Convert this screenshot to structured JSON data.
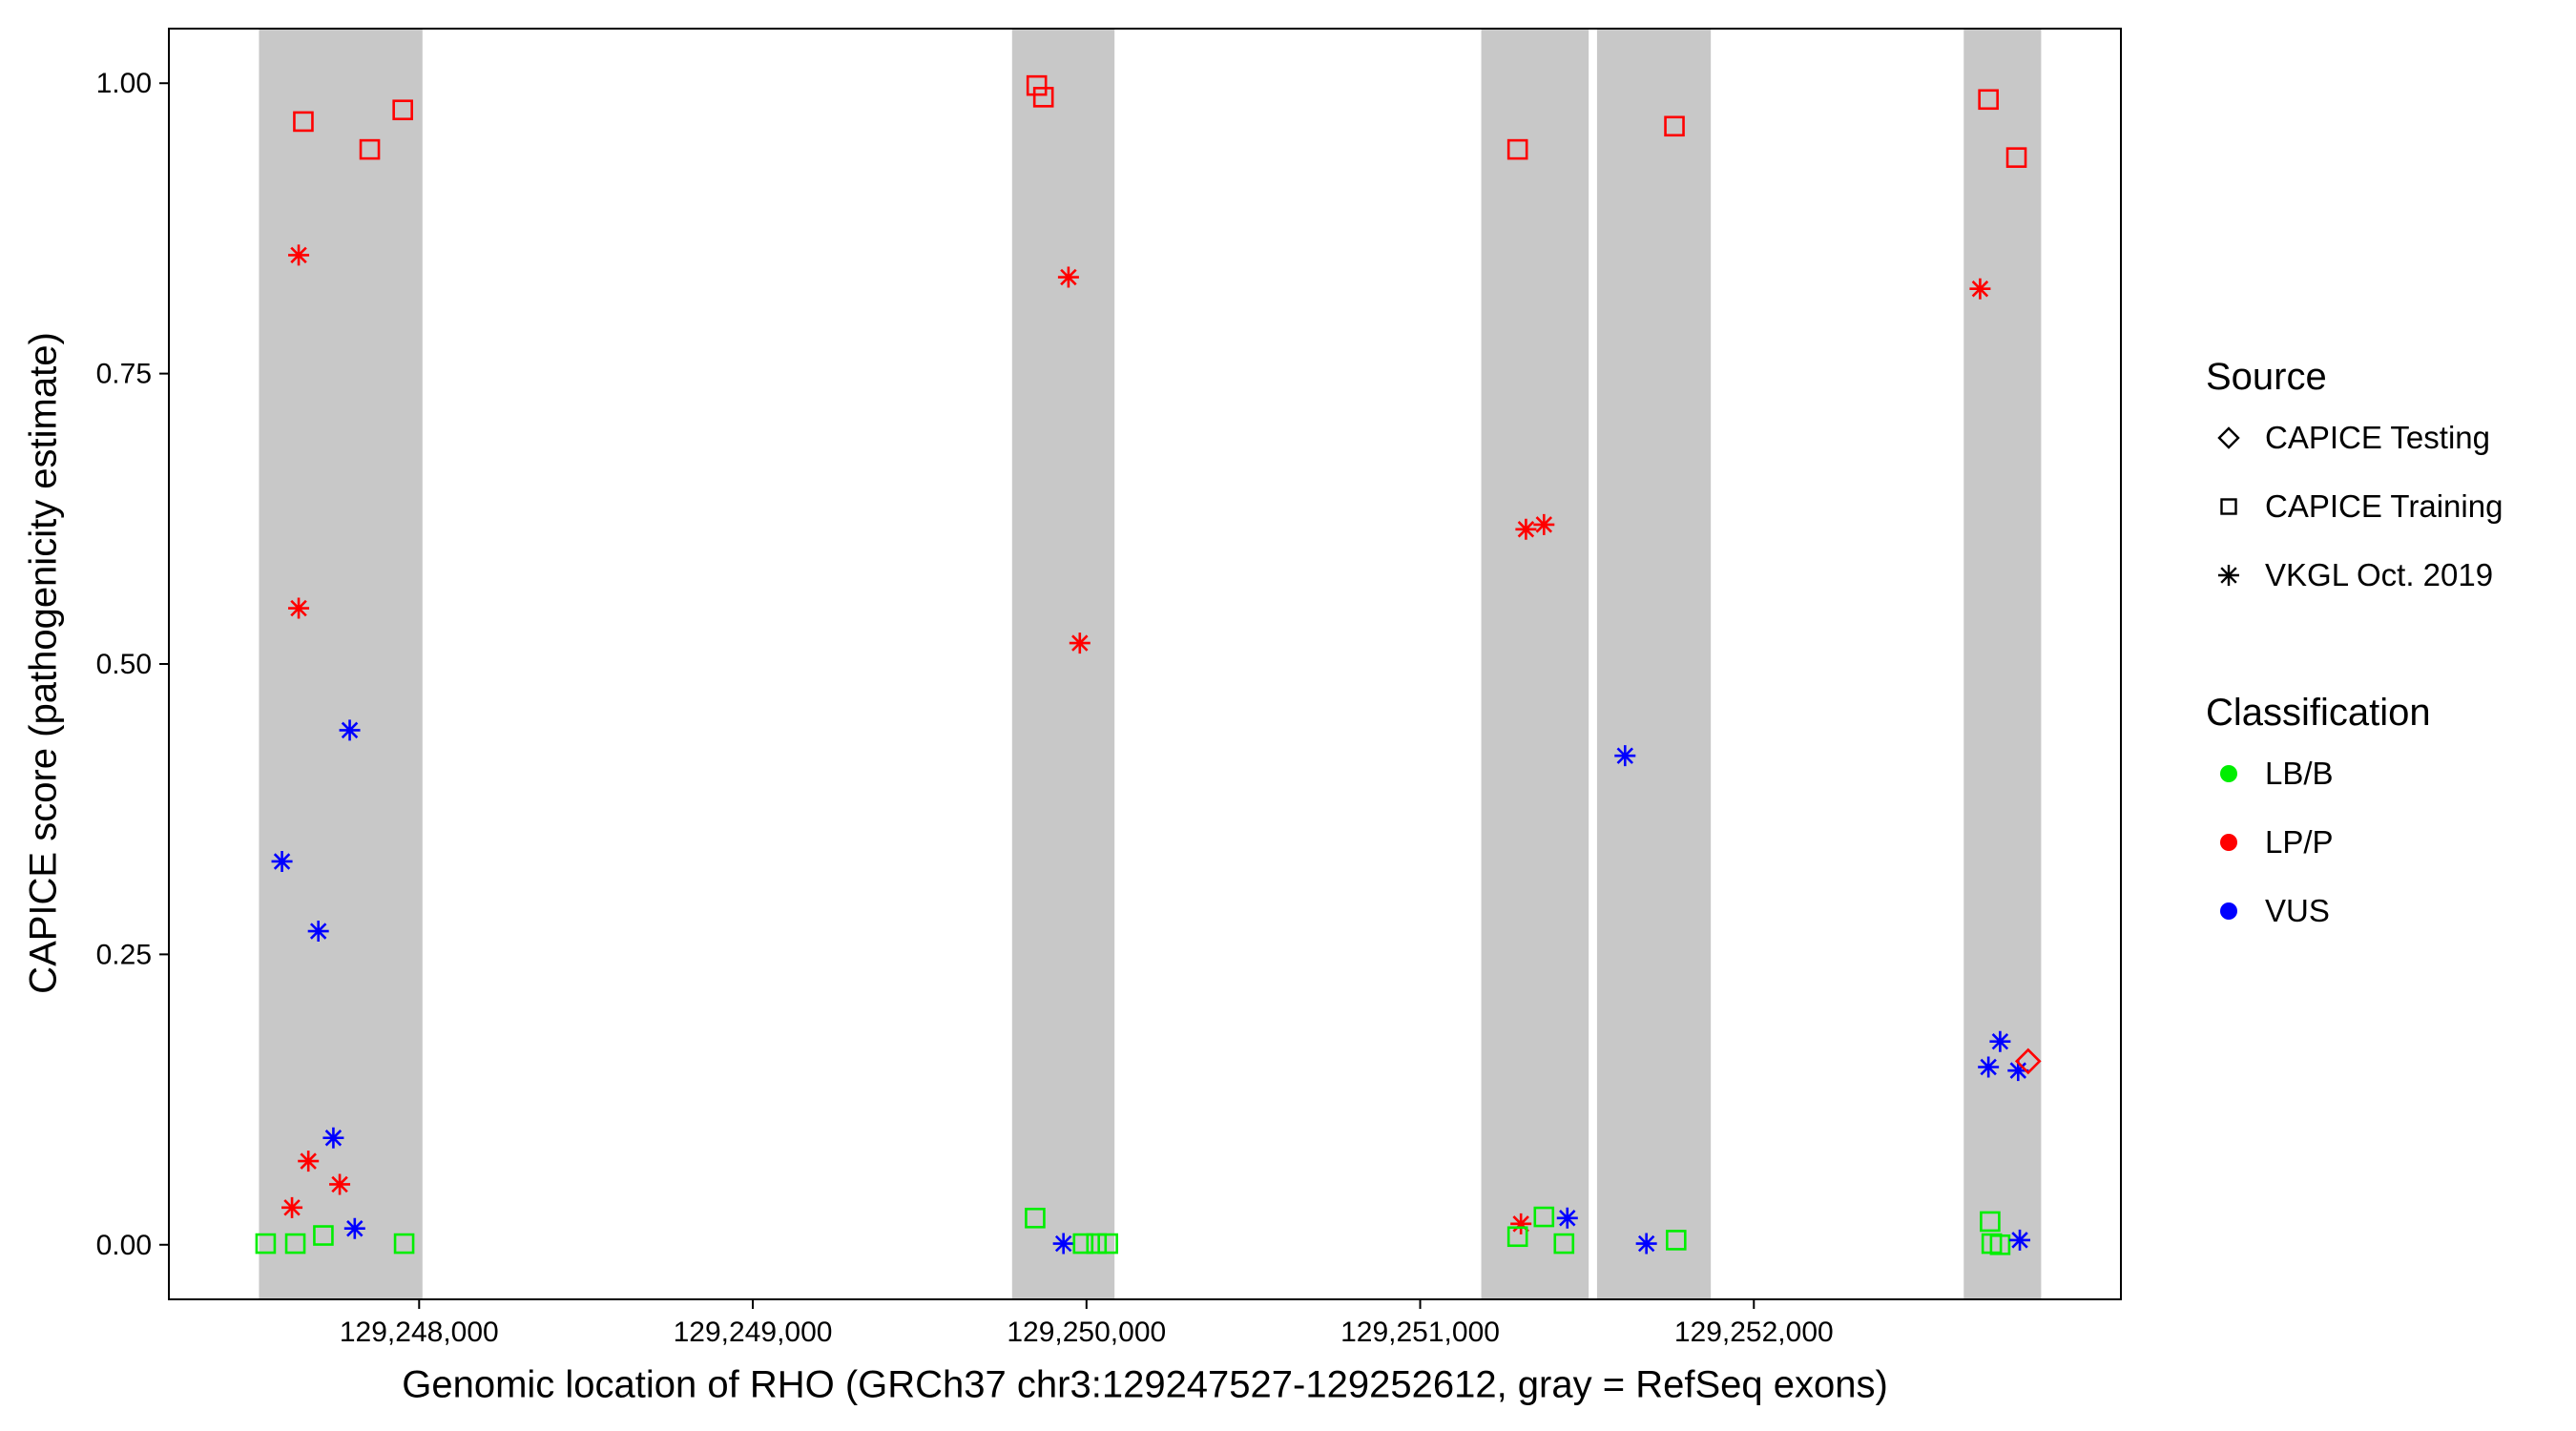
{
  "axes": {
    "x_title": "Genomic location of RHO (GRCh37 chr3:129247527-129252612, gray = RefSeq exons)",
    "y_title": "CAPICE score (pathogenicity estimate)"
  },
  "legend": {
    "source": {
      "title": "Source",
      "items": [
        {
          "label": "CAPICE Testing",
          "shape": "diamond"
        },
        {
          "label": "CAPICE Training",
          "shape": "square"
        },
        {
          "label": "VKGL Oct. 2019",
          "shape": "asterisk"
        }
      ]
    },
    "classification": {
      "title": "Classification",
      "items": [
        {
          "label": "LB/B",
          "color": "#00EE00"
        },
        {
          "label": "LP/P",
          "color": "#FF0000"
        },
        {
          "label": "VUS",
          "color": "#0000FF"
        }
      ]
    }
  },
  "chart_data": {
    "type": "scatter",
    "title": "",
    "xlabel": "Genomic location of RHO (GRCh37 chr3:129247527-129252612, gray = RefSeq exons)",
    "ylabel": "CAPICE score (pathogenicity estimate)",
    "x_domain": [
      129247250,
      129253100
    ],
    "y_domain": [
      -0.047,
      1.047
    ],
    "grid": false,
    "legend_position": "right",
    "x_ticks": [
      {
        "value": 129248000,
        "label": "129,248,000"
      },
      {
        "value": 129249000,
        "label": "129,249,000"
      },
      {
        "value": 129250000,
        "label": "129,250,000"
      },
      {
        "value": 129251000,
        "label": "129,251,000"
      },
      {
        "value": 129252000,
        "label": "129,252,000"
      }
    ],
    "y_ticks": [
      {
        "value": 0.0,
        "label": "0.00"
      },
      {
        "value": 0.25,
        "label": "0.25"
      },
      {
        "value": 0.5,
        "label": "0.50"
      },
      {
        "value": 0.75,
        "label": "0.75"
      },
      {
        "value": 1.0,
        "label": "1.00"
      }
    ],
    "exon_color": "#C8C8C8",
    "exons": [
      [
        129247520,
        129248010
      ],
      [
        129249777,
        129250084
      ],
      [
        129251183,
        129251505
      ],
      [
        129251530,
        129251871
      ],
      [
        129252629,
        129252861
      ]
    ],
    "classification_colors": {
      "LB/B": "#00EE00",
      "LP/P": "#FF0000",
      "VUS": "#0000FF"
    },
    "shape_meaning": {
      "diamond": "CAPICE Testing",
      "square": "CAPICE Training",
      "asterisk": "VKGL Oct. 2019"
    },
    "points": [
      {
        "x": 129247653,
        "y": 0.967,
        "shape": "square",
        "cls": "LP/P"
      },
      {
        "x": 129247852,
        "y": 0.943,
        "shape": "square",
        "cls": "LP/P"
      },
      {
        "x": 129247951,
        "y": 0.977,
        "shape": "square",
        "cls": "LP/P"
      },
      {
        "x": 129247639,
        "y": 0.852,
        "shape": "asterisk",
        "cls": "LP/P"
      },
      {
        "x": 129247639,
        "y": 0.548,
        "shape": "asterisk",
        "cls": "LP/P"
      },
      {
        "x": 129247792,
        "y": 0.443,
        "shape": "asterisk",
        "cls": "VUS"
      },
      {
        "x": 129247589,
        "y": 0.33,
        "shape": "asterisk",
        "cls": "VUS"
      },
      {
        "x": 129247698,
        "y": 0.27,
        "shape": "asterisk",
        "cls": "VUS"
      },
      {
        "x": 129247743,
        "y": 0.092,
        "shape": "asterisk",
        "cls": "VUS"
      },
      {
        "x": 129247668,
        "y": 0.072,
        "shape": "asterisk",
        "cls": "LP/P"
      },
      {
        "x": 129247762,
        "y": 0.052,
        "shape": "asterisk",
        "cls": "LP/P"
      },
      {
        "x": 129247619,
        "y": 0.032,
        "shape": "asterisk",
        "cls": "LP/P"
      },
      {
        "x": 129247807,
        "y": 0.014,
        "shape": "asterisk",
        "cls": "VUS"
      },
      {
        "x": 129247540,
        "y": 0.001,
        "shape": "square",
        "cls": "LB/B"
      },
      {
        "x": 129247629,
        "y": 0.001,
        "shape": "square",
        "cls": "LB/B"
      },
      {
        "x": 129247713,
        "y": 0.008,
        "shape": "square",
        "cls": "LB/B"
      },
      {
        "x": 129247955,
        "y": 0.001,
        "shape": "square",
        "cls": "LB/B"
      },
      {
        "x": 129249851,
        "y": 0.998,
        "shape": "square",
        "cls": "LP/P"
      },
      {
        "x": 129249871,
        "y": 0.988,
        "shape": "square",
        "cls": "LP/P"
      },
      {
        "x": 129249946,
        "y": 0.833,
        "shape": "asterisk",
        "cls": "LP/P"
      },
      {
        "x": 129249980,
        "y": 0.518,
        "shape": "asterisk",
        "cls": "LP/P"
      },
      {
        "x": 129249846,
        "y": 0.023,
        "shape": "square",
        "cls": "LB/B"
      },
      {
        "x": 129249931,
        "y": 0.001,
        "shape": "asterisk",
        "cls": "VUS"
      },
      {
        "x": 129249990,
        "y": 0.001,
        "shape": "square",
        "cls": "LB/B"
      },
      {
        "x": 129250030,
        "y": 0.001,
        "shape": "square",
        "cls": "LB/B"
      },
      {
        "x": 129250064,
        "y": 0.001,
        "shape": "square",
        "cls": "LB/B"
      },
      {
        "x": 129251292,
        "y": 0.943,
        "shape": "square",
        "cls": "LP/P"
      },
      {
        "x": 129251317,
        "y": 0.616,
        "shape": "asterisk",
        "cls": "LP/P"
      },
      {
        "x": 129251371,
        "y": 0.62,
        "shape": "asterisk",
        "cls": "LP/P"
      },
      {
        "x": 129251302,
        "y": 0.018,
        "shape": "asterisk",
        "cls": "LP/P"
      },
      {
        "x": 129251292,
        "y": 0.007,
        "shape": "square",
        "cls": "LB/B"
      },
      {
        "x": 129251371,
        "y": 0.024,
        "shape": "square",
        "cls": "LB/B"
      },
      {
        "x": 129251431,
        "y": 0.001,
        "shape": "square",
        "cls": "LB/B"
      },
      {
        "x": 129251441,
        "y": 0.023,
        "shape": "asterisk",
        "cls": "VUS"
      },
      {
        "x": 129251762,
        "y": 0.963,
        "shape": "square",
        "cls": "LP/P"
      },
      {
        "x": 129251614,
        "y": 0.421,
        "shape": "asterisk",
        "cls": "VUS"
      },
      {
        "x": 129251678,
        "y": 0.001,
        "shape": "asterisk",
        "cls": "VUS"
      },
      {
        "x": 129251767,
        "y": 0.004,
        "shape": "square",
        "cls": "LB/B"
      },
      {
        "x": 129252703,
        "y": 0.986,
        "shape": "square",
        "cls": "LP/P"
      },
      {
        "x": 129252787,
        "y": 0.936,
        "shape": "square",
        "cls": "LP/P"
      },
      {
        "x": 129252678,
        "y": 0.823,
        "shape": "asterisk",
        "cls": "LP/P"
      },
      {
        "x": 129252738,
        "y": 0.175,
        "shape": "asterisk",
        "cls": "VUS"
      },
      {
        "x": 129252703,
        "y": 0.153,
        "shape": "asterisk",
        "cls": "VUS"
      },
      {
        "x": 129252792,
        "y": 0.15,
        "shape": "asterisk",
        "cls": "VUS"
      },
      {
        "x": 129252822,
        "y": 0.158,
        "shape": "diamond",
        "cls": "LP/P"
      },
      {
        "x": 129252708,
        "y": 0.02,
        "shape": "square",
        "cls": "LB/B"
      },
      {
        "x": 129252713,
        "y": 0.001,
        "shape": "square",
        "cls": "LB/B"
      },
      {
        "x": 129252738,
        "y": 0.0,
        "shape": "square",
        "cls": "LB/B"
      },
      {
        "x": 129252797,
        "y": 0.004,
        "shape": "asterisk",
        "cls": "VUS"
      }
    ]
  }
}
